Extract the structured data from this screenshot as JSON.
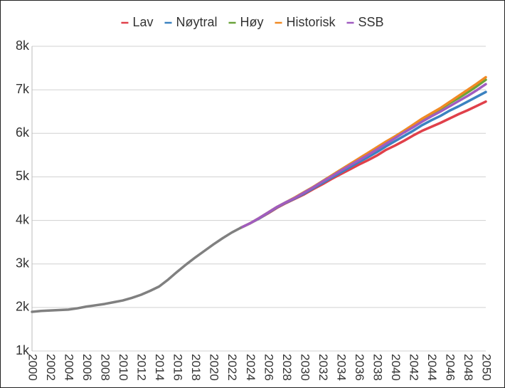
{
  "chart_data": {
    "type": "line",
    "x": [
      2000,
      2001,
      2002,
      2003,
      2004,
      2005,
      2006,
      2007,
      2008,
      2009,
      2010,
      2011,
      2012,
      2013,
      2014,
      2015,
      2016,
      2017,
      2018,
      2019,
      2020,
      2021,
      2022,
      2023,
      2024,
      2025,
      2026,
      2027,
      2028,
      2029,
      2030,
      2031,
      2032,
      2033,
      2034,
      2035,
      2036,
      2037,
      2038,
      2039,
      2040,
      2041,
      2042,
      2043,
      2044,
      2045,
      2046,
      2047,
      2048,
      2049,
      2050
    ],
    "series": [
      {
        "name": "Lav",
        "color": "#e0404a",
        "values": [
          null,
          null,
          null,
          null,
          null,
          null,
          null,
          null,
          null,
          null,
          null,
          null,
          null,
          null,
          null,
          null,
          null,
          null,
          null,
          null,
          null,
          null,
          null,
          3830,
          3930,
          4040,
          4160,
          4290,
          4400,
          4500,
          4600,
          4720,
          4830,
          4950,
          5060,
          5170,
          5280,
          5380,
          5490,
          5620,
          5720,
          5830,
          5950,
          6060,
          6150,
          6240,
          6340,
          6440,
          6530,
          6630,
          6730
        ]
      },
      {
        "name": "Nøytral",
        "color": "#3b82c0",
        "values": [
          null,
          null,
          null,
          null,
          null,
          null,
          null,
          null,
          null,
          null,
          null,
          null,
          null,
          null,
          null,
          null,
          null,
          null,
          null,
          null,
          null,
          null,
          null,
          3830,
          3930,
          4040,
          4170,
          4300,
          4410,
          4510,
          4620,
          4740,
          4860,
          4980,
          5100,
          5220,
          5340,
          5450,
          5570,
          5700,
          5820,
          5940,
          6060,
          6190,
          6300,
          6400,
          6520,
          6620,
          6730,
          6840,
          6950
        ]
      },
      {
        "name": "Høy",
        "color": "#6aa33a",
        "values": [
          null,
          null,
          null,
          null,
          null,
          null,
          null,
          null,
          null,
          null,
          null,
          null,
          null,
          null,
          null,
          null,
          null,
          null,
          null,
          null,
          null,
          null,
          null,
          3830,
          3930,
          4050,
          4180,
          4310,
          4420,
          4530,
          4650,
          4770,
          4900,
          5030,
          5160,
          5290,
          5410,
          5530,
          5660,
          5800,
          5930,
          6060,
          6190,
          6330,
          6450,
          6560,
          6690,
          6810,
          6940,
          7080,
          7230
        ]
      },
      {
        "name": "Historisk",
        "color": "#f08a24",
        "values": [
          null,
          null,
          null,
          null,
          null,
          null,
          null,
          null,
          null,
          null,
          null,
          null,
          null,
          null,
          null,
          null,
          null,
          null,
          null,
          null,
          null,
          null,
          null,
          3830,
          3930,
          4050,
          4180,
          4310,
          4420,
          4530,
          4650,
          4770,
          4900,
          5030,
          5160,
          5290,
          5420,
          5550,
          5680,
          5810,
          5930,
          6060,
          6200,
          6340,
          6460,
          6580,
          6720,
          6860,
          7000,
          7140,
          7290
        ]
      },
      {
        "name": "SSB",
        "color": "#a05cc0",
        "values": [
          null,
          null,
          null,
          null,
          null,
          null,
          null,
          null,
          null,
          null,
          null,
          null,
          null,
          null,
          null,
          null,
          null,
          null,
          null,
          null,
          null,
          null,
          null,
          3830,
          3930,
          4050,
          4180,
          4310,
          4420,
          4520,
          4640,
          4760,
          4890,
          5010,
          5140,
          5260,
          5380,
          5500,
          5630,
          5760,
          5890,
          6020,
          6140,
          6270,
          6390,
          6500,
          6620,
          6740,
          6860,
          6990,
          7130
        ]
      },
      {
        "color": "#808080",
        "values": [
          1900,
          1920,
          1930,
          1940,
          1950,
          1980,
          2020,
          2050,
          2080,
          2120,
          2160,
          2220,
          2290,
          2380,
          2480,
          2640,
          2820,
          2990,
          3150,
          3300,
          3450,
          3590,
          3720,
          3830,
          null,
          null,
          null,
          null,
          null,
          null,
          null,
          null,
          null,
          null,
          null,
          null,
          null,
          null,
          null,
          null,
          null,
          null,
          null,
          null,
          null,
          null,
          null,
          null,
          null,
          null,
          null
        ]
      }
    ],
    "xlim": [
      2000,
      2050
    ],
    "xticks": [
      2000,
      2002,
      2004,
      2006,
      2008,
      2010,
      2012,
      2014,
      2016,
      2018,
      2020,
      2022,
      2024,
      2026,
      2028,
      2030,
      2032,
      2034,
      2036,
      2038,
      2040,
      2042,
      2044,
      2046,
      2048,
      2050
    ],
    "ylim": [
      1000,
      8000
    ],
    "yticks": [
      {
        "value": 1000,
        "label": "1k"
      },
      {
        "value": 2000,
        "label": "2k"
      },
      {
        "value": 3000,
        "label": "3k"
      },
      {
        "value": 4000,
        "label": "4k"
      },
      {
        "value": 5000,
        "label": "5k"
      },
      {
        "value": 6000,
        "label": "6k"
      },
      {
        "value": 7000,
        "label": "7k"
      },
      {
        "value": 8000,
        "label": "8k"
      }
    ],
    "grid": true,
    "legend": "top"
  }
}
